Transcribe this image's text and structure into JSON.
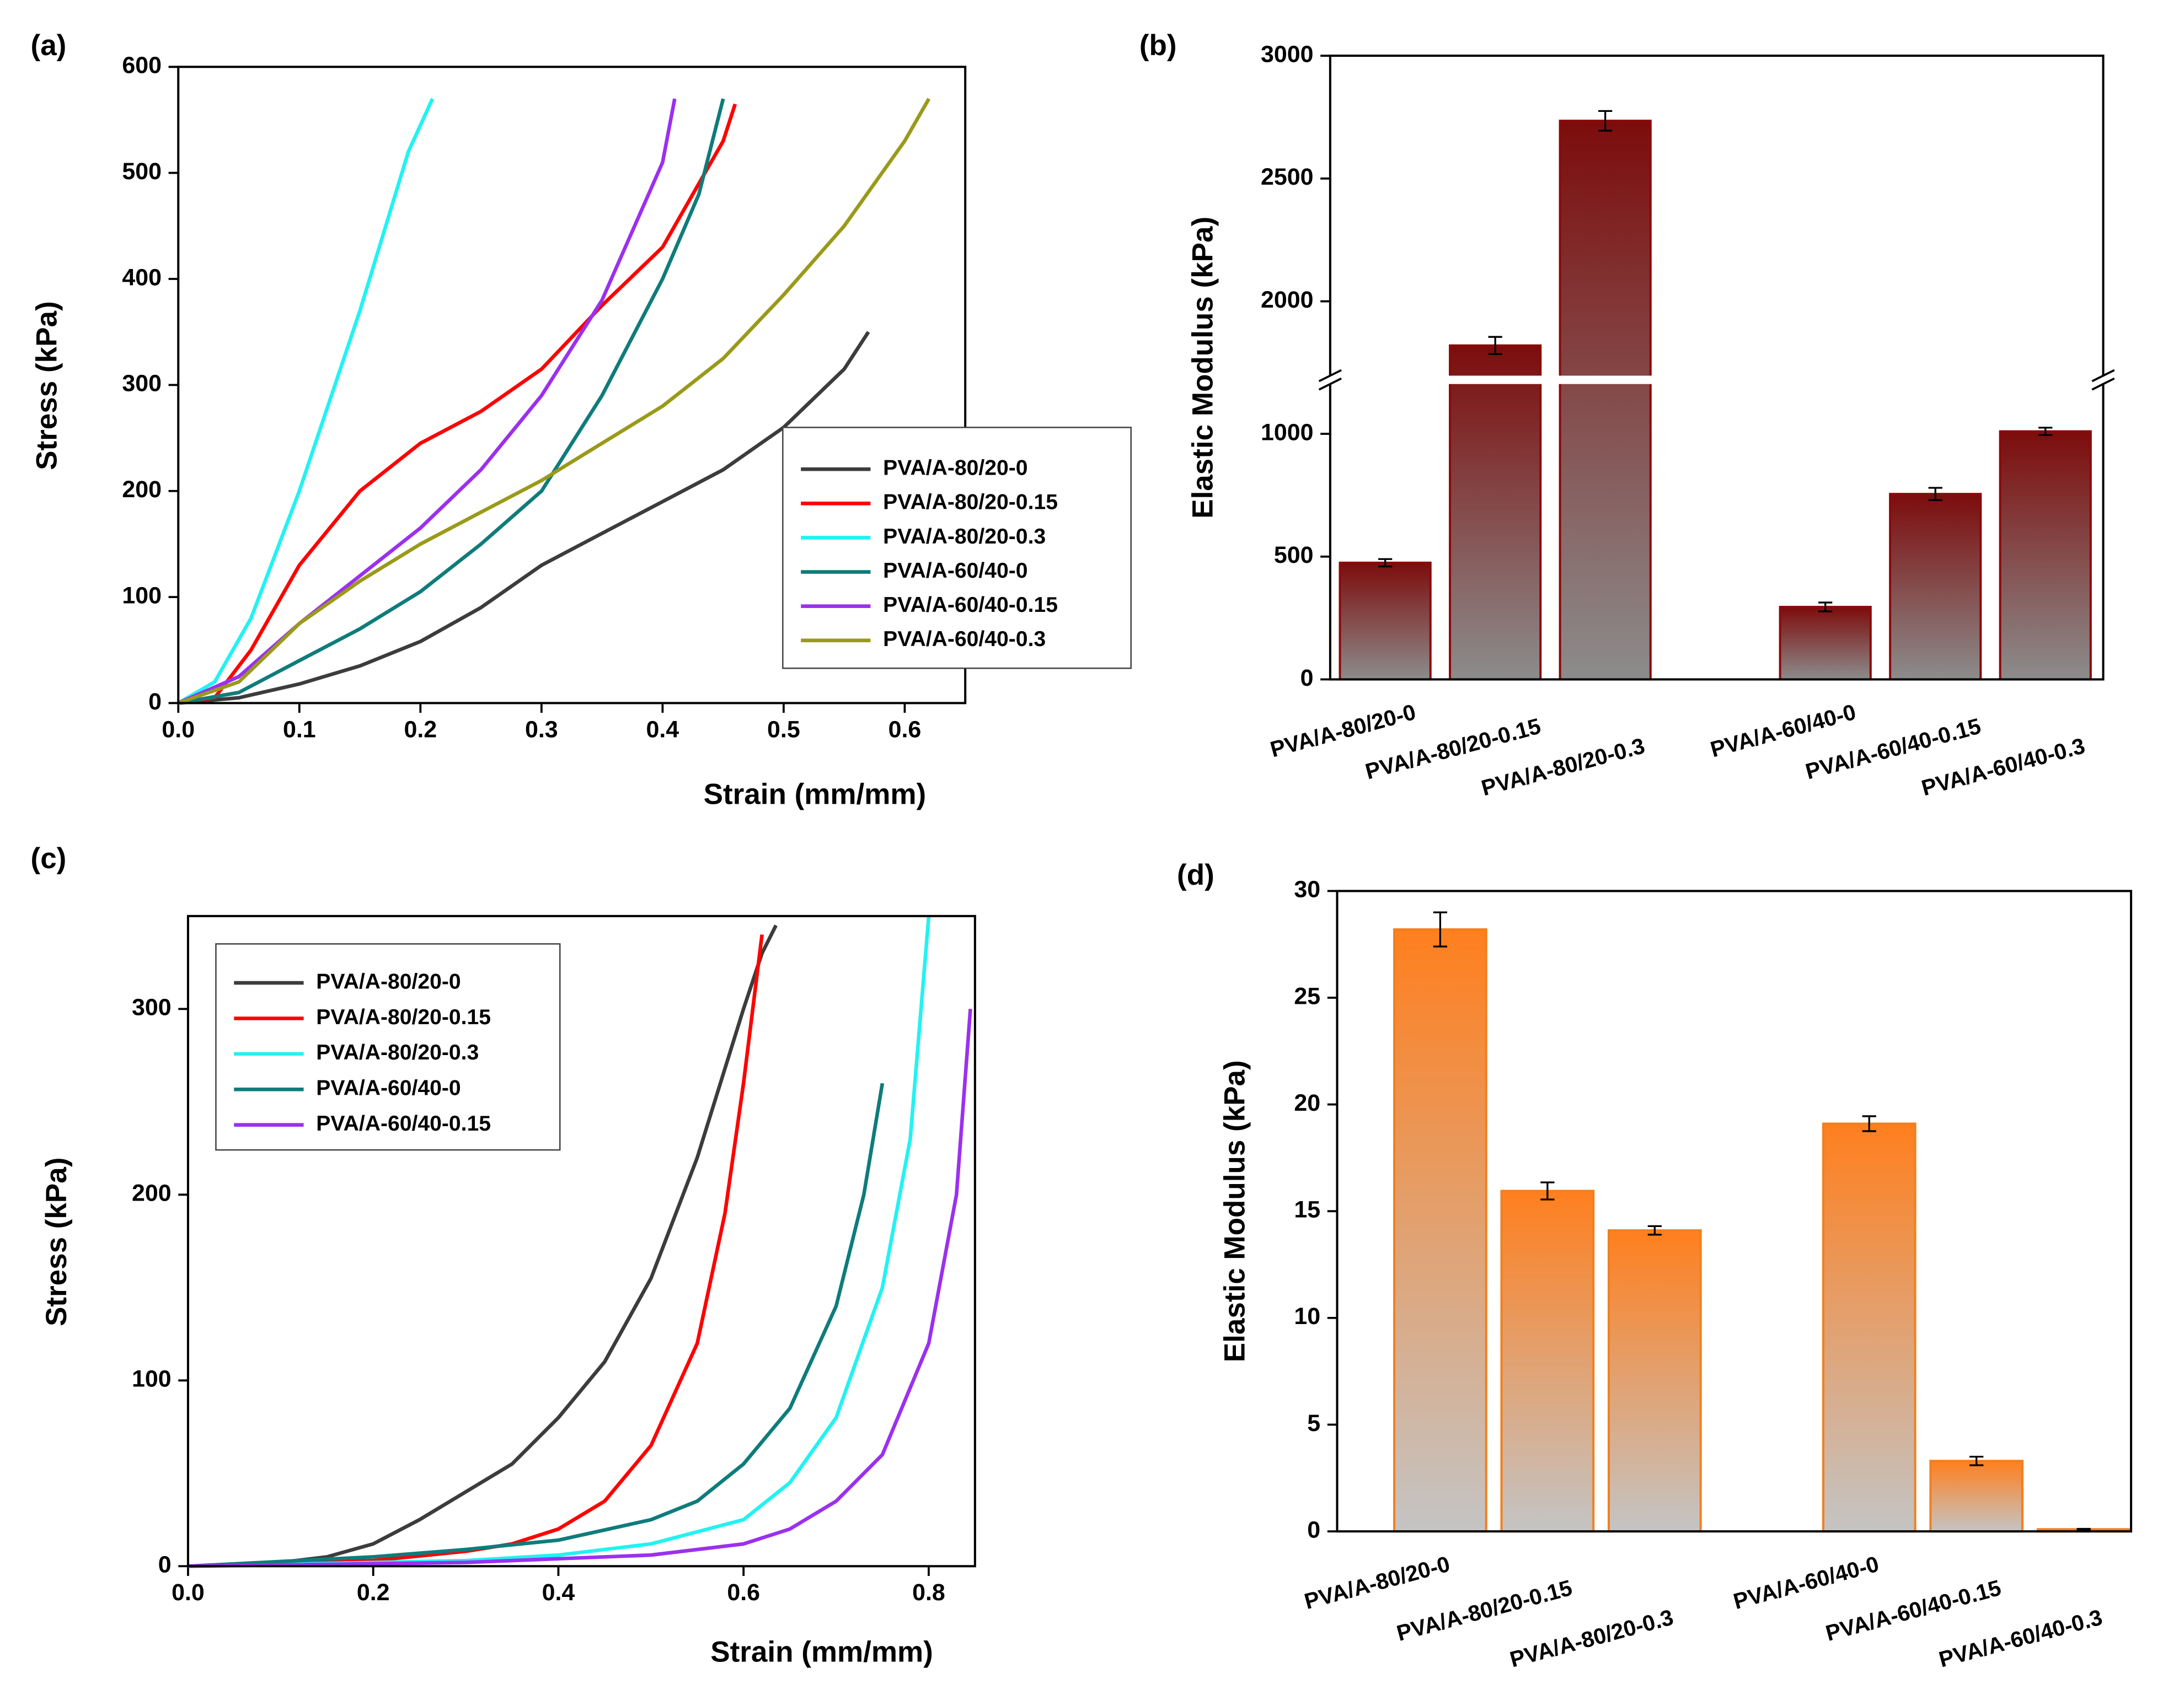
{
  "chart_data": [
    {
      "type": "line",
      "panel_label": "(a)",
      "xlabel": "Strain (mm/mm)",
      "ylabel": "Stress (kPa)",
      "xlim": [
        0,
        0.65
      ],
      "xticks": [
        {
          "value": 0,
          "label": "0.0"
        },
        0.1,
        0.2,
        0.3,
        0.4,
        0.5,
        0.6
      ],
      "ylim": [
        0,
        600
      ],
      "yticks": [
        0,
        100,
        200,
        300,
        400,
        500,
        600
      ],
      "legend": "lower right",
      "series": [
        {
          "name": "PVA/A-80/20-0",
          "color": "#3c3c3c",
          "x": [
            0,
            0.05,
            0.1,
            0.15,
            0.2,
            0.25,
            0.3,
            0.35,
            0.4,
            0.45,
            0.5,
            0.55,
            0.57
          ],
          "values": [
            0,
            5,
            18,
            35,
            58,
            90,
            130,
            160,
            190,
            220,
            260,
            315,
            350
          ]
        },
        {
          "name": "PVA/A-80/20-0.15",
          "color": "#ff0000",
          "x": [
            0,
            0.03,
            0.06,
            0.1,
            0.15,
            0.2,
            0.25,
            0.3,
            0.35,
            0.4,
            0.45,
            0.46
          ],
          "values": [
            0,
            5,
            50,
            130,
            200,
            245,
            275,
            315,
            375,
            430,
            530,
            565
          ]
        },
        {
          "name": "PVA/A-80/20-0.3",
          "color": "#22f2f2",
          "x": [
            0,
            0.03,
            0.06,
            0.1,
            0.15,
            0.19,
            0.21
          ],
          "values": [
            0,
            20,
            80,
            200,
            370,
            520,
            570
          ]
        },
        {
          "name": "PVA/A-60/40-0",
          "color": "#0e7c7b",
          "x": [
            0,
            0.05,
            0.1,
            0.15,
            0.2,
            0.25,
            0.3,
            0.35,
            0.4,
            0.43,
            0.45
          ],
          "values": [
            0,
            10,
            40,
            70,
            105,
            150,
            200,
            290,
            400,
            480,
            570
          ]
        },
        {
          "name": "PVA/A-60/40-0.15",
          "color": "#9b30f0",
          "x": [
            0,
            0.05,
            0.1,
            0.15,
            0.2,
            0.25,
            0.3,
            0.35,
            0.4,
            0.41
          ],
          "values": [
            0,
            25,
            75,
            120,
            165,
            220,
            290,
            380,
            510,
            570
          ]
        },
        {
          "name": "PVA/A-60/40-0.3",
          "color": "#9a9a1a",
          "x": [
            0,
            0.05,
            0.1,
            0.15,
            0.2,
            0.25,
            0.3,
            0.35,
            0.4,
            0.45,
            0.5,
            0.55,
            0.6,
            0.62
          ],
          "values": [
            0,
            20,
            75,
            115,
            150,
            180,
            210,
            245,
            280,
            325,
            385,
            450,
            530,
            570
          ]
        }
      ]
    },
    {
      "type": "bar",
      "panel_label": "(b)",
      "ylabel": "Elastic Modulus (kPa)",
      "categories": [
        "PVA/A-80/20-0",
        "PVA/A-80/20-0.15",
        "PVA/A-80/20-0.3",
        null,
        "PVA/A-60/40-0",
        "PVA/A-60/40-0.15",
        "PVA/A-60/40-0.3"
      ],
      "values": [
        475,
        1820,
        2735,
        null,
        295,
        755,
        1010
      ],
      "errors": [
        15,
        35,
        40,
        null,
        18,
        25,
        15
      ],
      "ylim": [
        0,
        3000
      ],
      "axis_break": [
        1200,
        1700
      ],
      "yticks": [
        0,
        500,
        1000,
        2000,
        2500,
        3000
      ],
      "color": "#7d0c0c",
      "gradient_to": "#8c8c8c",
      "edge_color": "#8b0a0a"
    },
    {
      "type": "line",
      "panel_label": "(c)",
      "xlabel": "Strain (mm/mm)",
      "ylabel": "Stress (kPa)",
      "xlim": [
        0,
        0.85
      ],
      "xticks": [
        {
          "value": 0,
          "label": "0.0"
        },
        0.2,
        0.4,
        0.6,
        0.8
      ],
      "ylim": [
        0,
        350
      ],
      "yticks": [
        0,
        100,
        200,
        300
      ],
      "legend": "upper left",
      "series": [
        {
          "name": "PVA/A-80/20-0",
          "color": "#3c3c3c",
          "x": [
            0,
            0.1,
            0.15,
            0.2,
            0.25,
            0.3,
            0.35,
            0.4,
            0.45,
            0.5,
            0.55,
            0.6,
            0.62,
            0.635
          ],
          "values": [
            0,
            2,
            5,
            12,
            25,
            40,
            55,
            80,
            110,
            155,
            220,
            300,
            330,
            345
          ]
        },
        {
          "name": "PVA/A-80/20-0.15",
          "color": "#ff0000",
          "x": [
            0,
            0.2,
            0.3,
            0.35,
            0.4,
            0.45,
            0.5,
            0.55,
            0.58,
            0.6,
            0.62
          ],
          "values": [
            0,
            3,
            8,
            12,
            20,
            35,
            65,
            120,
            190,
            260,
            340
          ]
        },
        {
          "name": "PVA/A-80/20-0.3",
          "color": "#22f2f2",
          "x": [
            0,
            0.3,
            0.4,
            0.5,
            0.6,
            0.65,
            0.7,
            0.75,
            0.78,
            0.8
          ],
          "values": [
            0,
            3,
            6,
            12,
            25,
            45,
            80,
            150,
            230,
            350
          ]
        },
        {
          "name": "PVA/A-60/40-0",
          "color": "#0e7c7b",
          "x": [
            0,
            0.2,
            0.3,
            0.4,
            0.5,
            0.55,
            0.6,
            0.65,
            0.7,
            0.73,
            0.75
          ],
          "values": [
            0,
            5,
            9,
            14,
            25,
            35,
            55,
            85,
            140,
            200,
            260
          ]
        },
        {
          "name": "PVA/A-60/40-0.15",
          "color": "#9b30f0",
          "x": [
            0,
            0.3,
            0.5,
            0.6,
            0.65,
            0.7,
            0.75,
            0.8,
            0.83,
            0.845
          ],
          "values": [
            0,
            2,
            6,
            12,
            20,
            35,
            60,
            120,
            200,
            300
          ]
        }
      ]
    },
    {
      "type": "bar",
      "panel_label": "(d)",
      "ylabel": "Elastic Modulus (kPa)",
      "categories": [
        "PVA/A-80/20-0",
        "PVA/A-80/20-0.15",
        "PVA/A-80/20-0.3",
        null,
        "PVA/A-60/40-0",
        "PVA/A-60/40-0.15",
        "PVA/A-60/40-0.3"
      ],
      "values": [
        28.2,
        15.95,
        14.1,
        null,
        19.1,
        3.3,
        0.1
      ],
      "errors": [
        0.8,
        0.4,
        0.2,
        null,
        0.35,
        0.2,
        0.02
      ],
      "ylim": [
        0,
        30
      ],
      "yticks": [
        0,
        5,
        10,
        15,
        20,
        25,
        30
      ],
      "color": "#ff7f1e",
      "gradient_to": "#c4c4c4",
      "edge_color": "#f08020"
    }
  ]
}
